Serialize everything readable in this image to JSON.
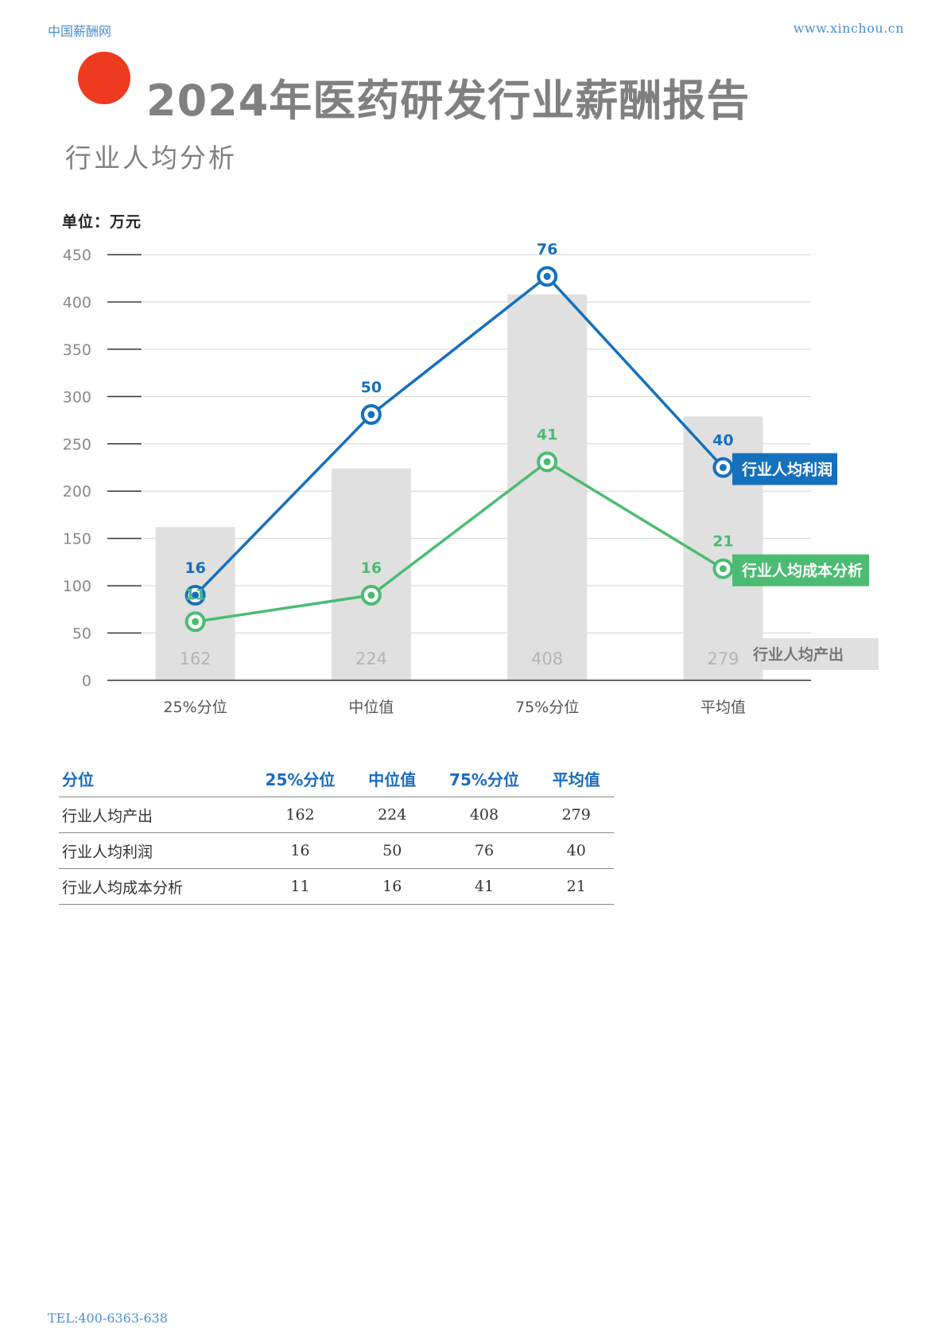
{
  "header": {
    "site_name": "中国薪酬网",
    "site_url": "www.xinchou.cn"
  },
  "report_title": "2024年医药研发行业薪酬报告",
  "section_title": "行业人均分析",
  "unit_label": "单位：万元",
  "colors": {
    "bar": "#e0e0e0",
    "profit": "#1570bd",
    "cost": "#4cbc72",
    "accent_dot": "#ee3a1f"
  },
  "chart_data": {
    "type": "bar",
    "categories": [
      "25%分位",
      "中位值",
      "75%分位",
      "平均值"
    ],
    "y_ticks": [
      0,
      50,
      100,
      150,
      200,
      250,
      300,
      350,
      400,
      450
    ],
    "ylim": [
      0,
      450
    ],
    "grid": true,
    "series": [
      {
        "name": "行业人均产出",
        "kind": "bar",
        "values": [
          162,
          224,
          408,
          279
        ]
      },
      {
        "name": "行业人均利润",
        "kind": "line",
        "values": [
          16,
          50,
          76,
          40
        ],
        "plotted": [
          90,
          281,
          427,
          225
        ]
      },
      {
        "name": "行业人均成本分析",
        "kind": "line",
        "values": [
          11,
          16,
          41,
          21
        ],
        "plotted": [
          62,
          90,
          231,
          118
        ]
      }
    ]
  },
  "table": {
    "headers": [
      "分位",
      "25%分位",
      "中位值",
      "75%分位",
      "平均值"
    ],
    "rows": [
      [
        "行业人均产出",
        "162",
        "224",
        "408",
        "279"
      ],
      [
        "行业人均利润",
        "16",
        "50",
        "76",
        "40"
      ],
      [
        "行业人均成本分析",
        "11",
        "16",
        "41",
        "21"
      ]
    ]
  },
  "footer": {
    "tel": "TEL:400-6363-638"
  }
}
